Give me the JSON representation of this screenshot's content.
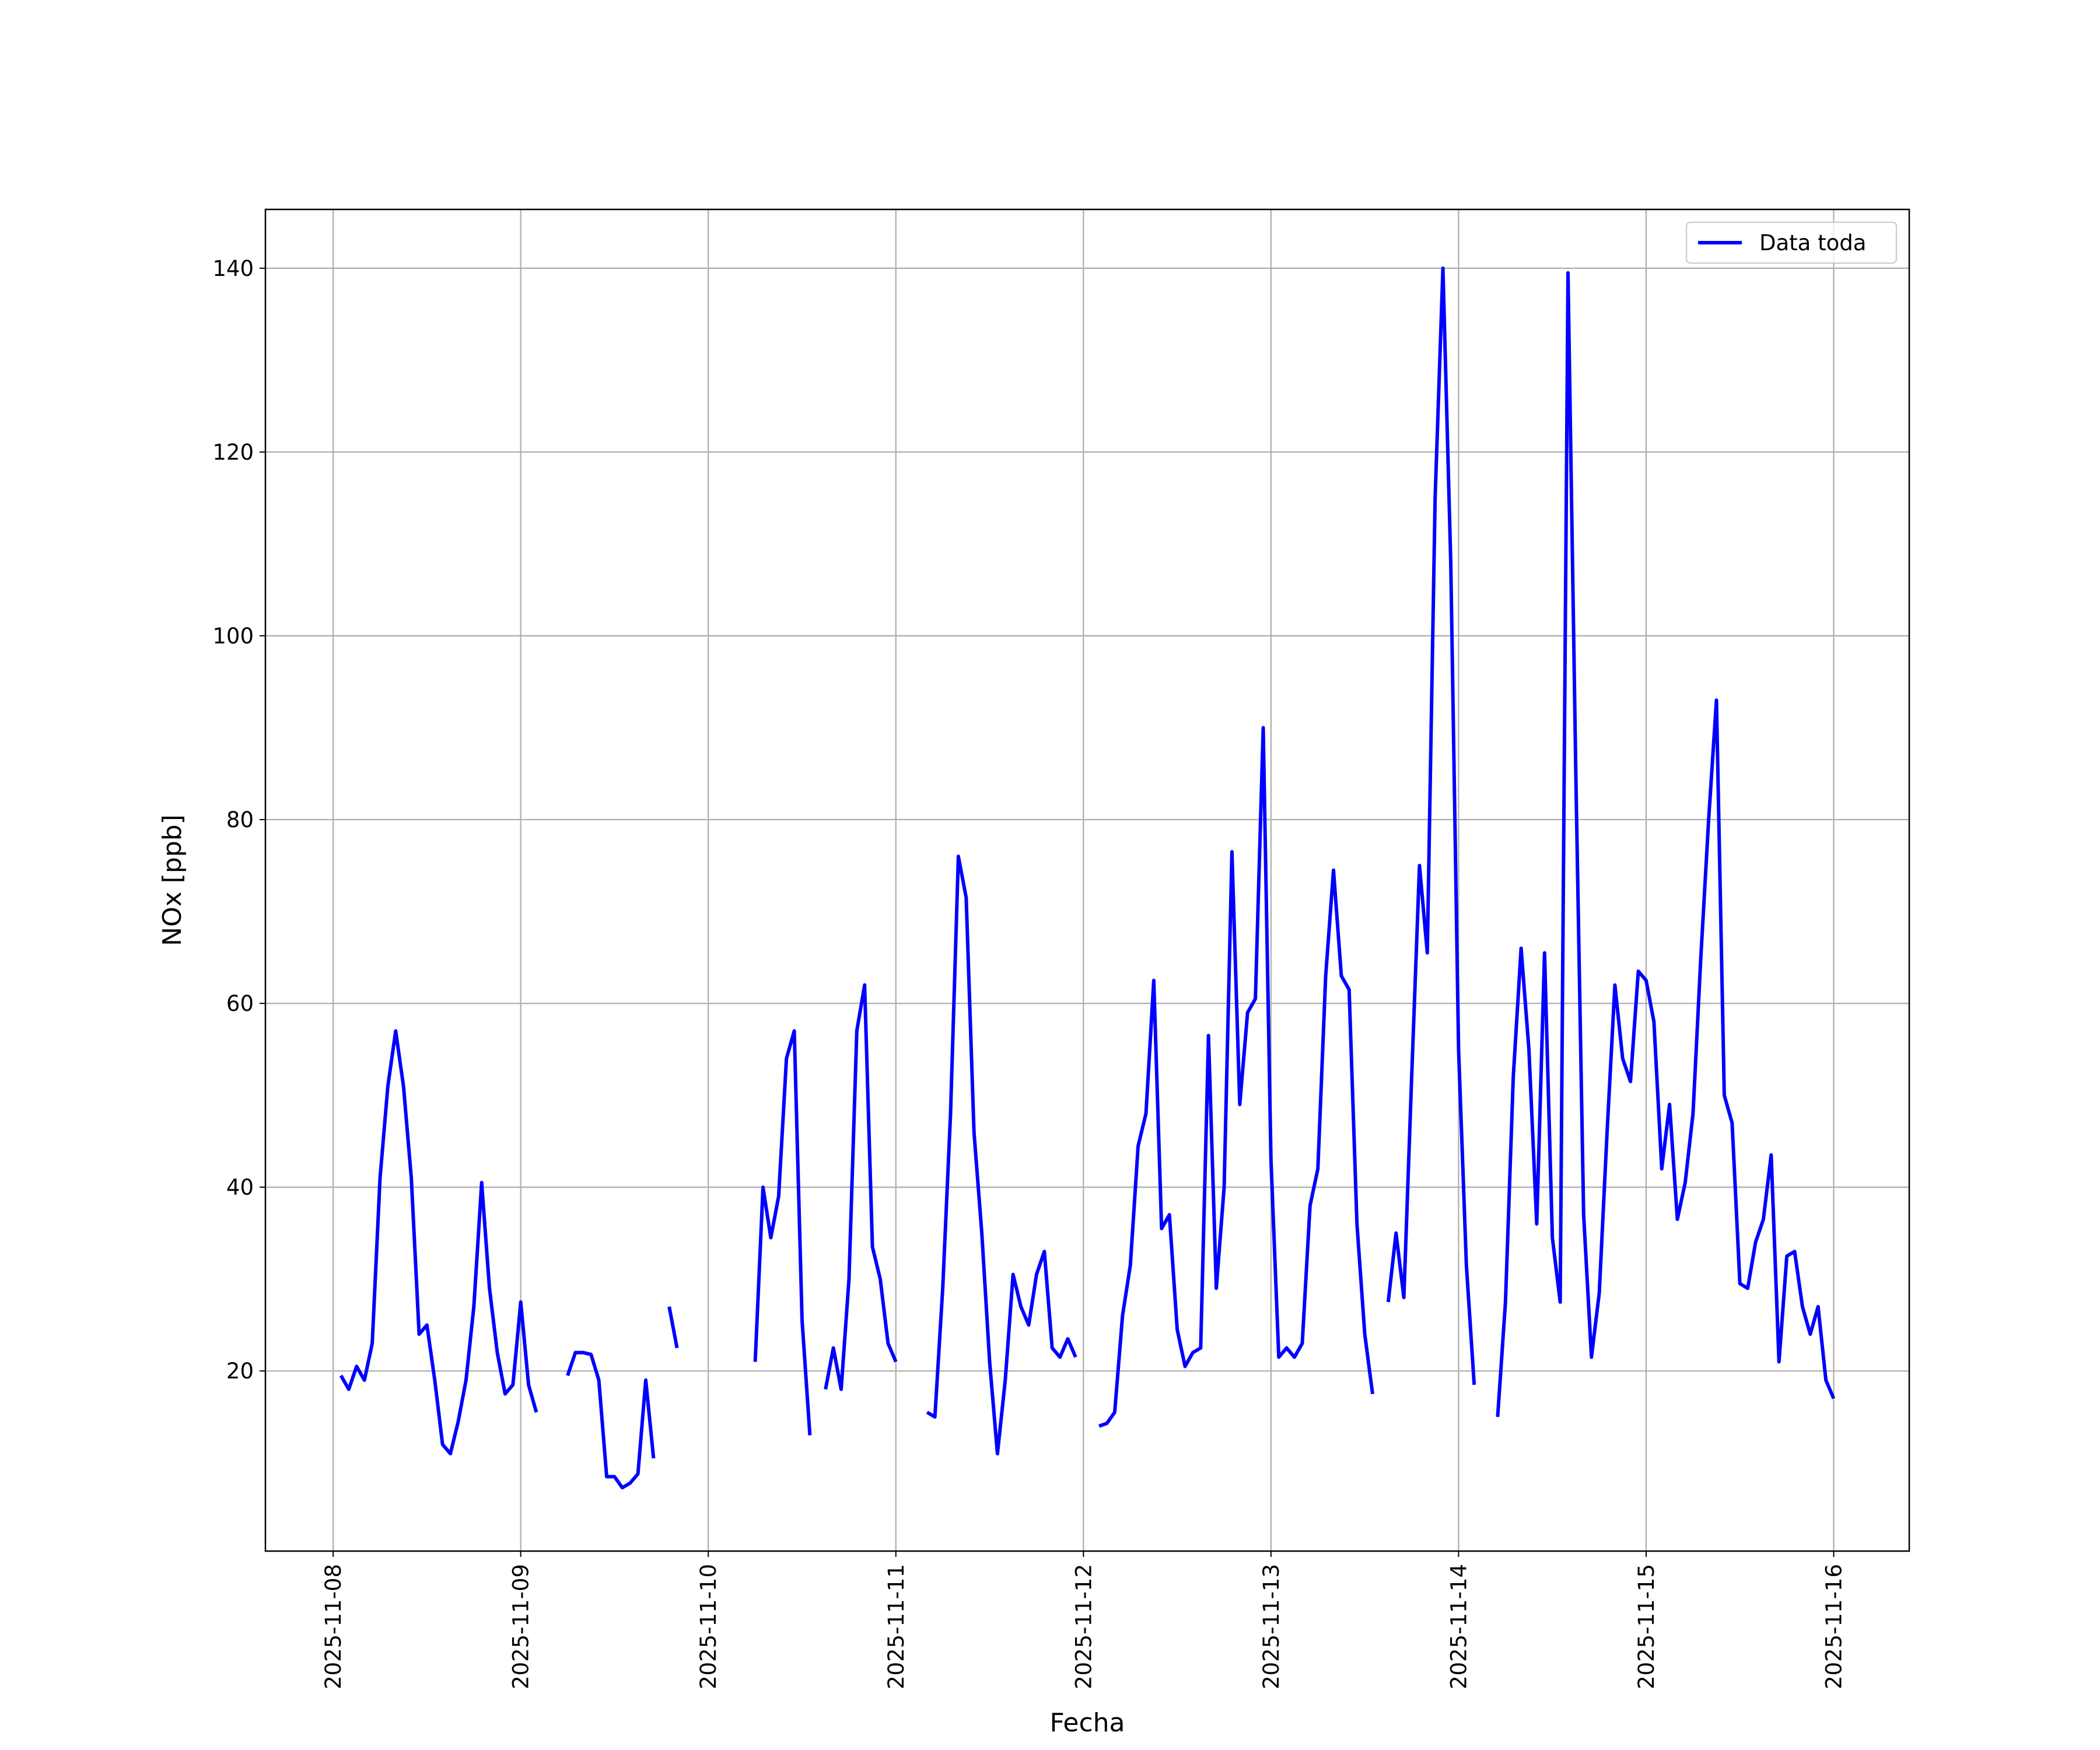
{
  "chart_data": {
    "type": "line",
    "x_label": "Fecha",
    "y_label": "NOx [ppb]",
    "x": [
      "2025-11-08 01:00",
      "2025-11-08 02:00",
      "2025-11-08 03:00",
      "2025-11-08 04:00",
      "2025-11-08 05:00",
      "2025-11-08 06:00",
      "2025-11-08 07:00",
      "2025-11-08 08:00",
      "2025-11-08 09:00",
      "2025-11-08 10:00",
      "2025-11-08 11:00",
      "2025-11-08 12:00",
      "2025-11-08 13:00",
      "2025-11-08 14:00",
      "2025-11-08 15:00",
      "2025-11-08 16:00",
      "2025-11-08 17:00",
      "2025-11-08 18:00",
      "2025-11-08 19:00",
      "2025-11-08 20:00",
      "2025-11-08 21:00",
      "2025-11-08 22:00",
      "2025-11-08 23:00",
      "2025-11-09 00:00",
      "2025-11-09 01:00",
      "2025-11-09 02:00",
      "2025-11-09 03:00",
      "2025-11-09 06:00",
      "2025-11-09 07:00",
      "2025-11-09 08:00",
      "2025-11-09 09:00",
      "2025-11-09 10:00",
      "2025-11-09 11:00",
      "2025-11-09 12:00",
      "2025-11-09 13:00",
      "2025-11-09 14:00",
      "2025-11-09 15:00",
      "2025-11-09 16:00",
      "2025-11-09 17:00",
      "2025-11-09 18:00",
      "2025-11-09 19:00",
      "2025-11-09 20:00",
      "2025-11-09 21:00",
      "2025-11-10 06:00",
      "2025-11-10 07:00",
      "2025-11-10 08:00",
      "2025-11-10 09:00",
      "2025-11-10 10:00",
      "2025-11-10 11:00",
      "2025-11-10 12:00",
      "2025-11-10 13:00",
      "2025-11-10 14:00",
      "2025-11-10 15:00",
      "2025-11-10 16:00",
      "2025-11-10 17:00",
      "2025-11-10 18:00",
      "2025-11-10 19:00",
      "2025-11-10 20:00",
      "2025-11-10 21:00",
      "2025-11-10 22:00",
      "2025-11-10 23:00",
      "2025-11-11 00:00",
      "2025-11-11 01:00",
      "2025-11-11 04:00",
      "2025-11-11 05:00",
      "2025-11-11 06:00",
      "2025-11-11 07:00",
      "2025-11-11 08:00",
      "2025-11-11 09:00",
      "2025-11-11 10:00",
      "2025-11-11 11:00",
      "2025-11-11 12:00",
      "2025-11-11 13:00",
      "2025-11-11 14:00",
      "2025-11-11 15:00",
      "2025-11-11 16:00",
      "2025-11-11 17:00",
      "2025-11-11 18:00",
      "2025-11-11 19:00",
      "2025-11-11 20:00",
      "2025-11-11 21:00",
      "2025-11-11 22:00",
      "2025-11-11 23:00",
      "2025-11-12 00:00",
      "2025-11-12 02:00",
      "2025-11-12 03:00",
      "2025-11-12 04:00",
      "2025-11-12 05:00",
      "2025-11-12 06:00",
      "2025-11-12 07:00",
      "2025-11-12 08:00",
      "2025-11-12 09:00",
      "2025-11-12 10:00",
      "2025-11-12 11:00",
      "2025-11-12 12:00",
      "2025-11-12 13:00",
      "2025-11-12 14:00",
      "2025-11-12 15:00",
      "2025-11-12 16:00",
      "2025-11-12 17:00",
      "2025-11-12 18:00",
      "2025-11-12 19:00",
      "2025-11-12 20:00",
      "2025-11-12 21:00",
      "2025-11-12 22:00",
      "2025-11-12 23:00",
      "2025-11-13 00:00",
      "2025-11-13 01:00",
      "2025-11-13 02:00",
      "2025-11-13 03:00",
      "2025-11-13 04:00",
      "2025-11-13 05:00",
      "2025-11-13 06:00",
      "2025-11-13 07:00",
      "2025-11-13 08:00",
      "2025-11-13 09:00",
      "2025-11-13 10:00",
      "2025-11-13 11:00",
      "2025-11-13 12:00",
      "2025-11-13 13:00",
      "2025-11-13 14:00",
      "2025-11-13 15:00",
      "2025-11-13 16:00",
      "2025-11-13 17:00",
      "2025-11-13 18:00",
      "2025-11-13 19:00",
      "2025-11-13 20:00",
      "2025-11-13 21:00",
      "2025-11-13 22:00",
      "2025-11-13 23:00",
      "2025-11-14 00:00",
      "2025-11-14 01:00",
      "2025-11-14 02:00",
      "2025-11-14 03:00",
      "2025-11-14 05:00",
      "2025-11-14 06:00",
      "2025-11-14 07:00",
      "2025-11-14 08:00",
      "2025-11-14 09:00",
      "2025-11-14 10:00",
      "2025-11-14 11:00",
      "2025-11-14 12:00",
      "2025-11-14 13:00",
      "2025-11-14 14:00",
      "2025-11-14 15:00",
      "2025-11-14 16:00",
      "2025-11-14 17:00",
      "2025-11-14 18:00",
      "2025-11-14 19:00",
      "2025-11-14 20:00",
      "2025-11-14 21:00",
      "2025-11-14 22:00",
      "2025-11-14 23:00",
      "2025-11-15 00:00",
      "2025-11-15 01:00",
      "2025-11-15 02:00",
      "2025-11-15 03:00",
      "2025-11-15 04:00",
      "2025-11-15 05:00",
      "2025-11-15 06:00",
      "2025-11-15 07:00",
      "2025-11-15 08:00",
      "2025-11-15 09:00",
      "2025-11-15 10:00",
      "2025-11-15 11:00",
      "2025-11-15 12:00",
      "2025-11-15 13:00",
      "2025-11-15 14:00",
      "2025-11-15 15:00",
      "2025-11-15 16:00",
      "2025-11-15 17:00",
      "2025-11-15 18:00",
      "2025-11-15 19:00",
      "2025-11-15 20:00",
      "2025-11-15 21:00",
      "2025-11-15 22:00",
      "2025-11-15 23:00",
      "2025-11-16 00:00"
    ],
    "series": [
      {
        "name": "Data toda",
        "color": "#0000ff",
        "values": [
          19.5,
          18,
          20.5,
          19,
          23,
          41,
          51,
          57,
          51,
          41,
          24,
          25,
          19,
          12,
          11,
          14.5,
          19,
          27,
          40.5,
          29,
          22,
          17.5,
          18.5,
          27.5,
          18.5,
          15.5,
          null,
          19.5,
          22,
          22,
          21.8,
          19,
          8.5,
          8.5,
          7.3,
          7.8,
          8.8,
          19,
          10.5,
          null,
          27,
          22.5,
          null,
          21,
          40,
          34.5,
          39,
          54,
          57,
          25.5,
          13,
          null,
          18,
          22.5,
          18,
          30,
          57,
          62,
          33.5,
          30,
          23,
          21,
          null,
          15.5,
          15,
          29,
          48,
          76,
          71.5,
          46,
          35,
          21,
          11,
          19,
          30.5,
          27,
          25,
          30.5,
          33,
          22.5,
          21.5,
          23.5,
          21.5,
          null,
          14,
          14.3,
          15.5,
          26,
          31.5,
          44.5,
          48,
          62.5,
          35.5,
          37,
          24.5,
          20.5,
          22,
          22.5,
          56.5,
          29,
          40,
          76.5,
          49,
          59,
          60.5,
          90,
          43,
          21.5,
          22.5,
          21.5,
          23,
          38,
          42,
          63,
          74.5,
          63,
          61.5,
          36,
          24,
          17.5,
          null,
          27.5,
          35,
          28,
          52,
          75,
          65.5,
          115,
          140,
          108,
          55,
          31.5,
          18.5,
          null,
          15,
          27.5,
          52,
          66,
          55,
          36,
          65.5,
          34.5,
          27.5,
          139.5,
          85,
          37,
          21.5,
          28.5,
          46,
          62,
          54,
          51.5,
          63.5,
          62.5,
          58,
          42,
          49,
          36.5,
          40.5,
          48,
          65,
          80,
          93,
          50,
          47,
          29.5,
          29,
          34,
          36.5,
          43.5,
          21,
          32.5,
          33,
          27,
          24,
          27,
          19,
          17
        ]
      }
    ],
    "xlim": [
      "2025-11-07 15:20",
      "2025-11-16 09:40"
    ],
    "xticks": [
      "2025-11-08",
      "2025-11-09",
      "2025-11-10",
      "2025-11-11",
      "2025-11-12",
      "2025-11-13",
      "2025-11-14",
      "2025-11-15",
      "2025-11-16"
    ],
    "ylim": [
      0.4,
      146.4
    ],
    "yticks": [
      20,
      40,
      60,
      80,
      100,
      120,
      140
    ],
    "grid": true,
    "legend": "upper right"
  }
}
